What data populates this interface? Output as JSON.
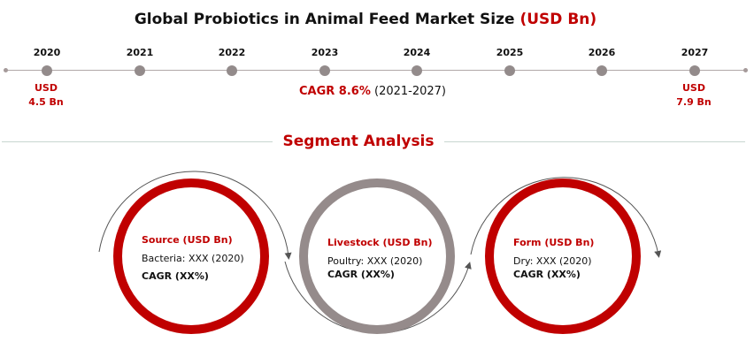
{
  "title": {
    "main": "Global Probiotics in Animal Feed Market Size",
    "unit": "(USD Bn)"
  },
  "timeline": {
    "years": [
      "2020",
      "2021",
      "2022",
      "2023",
      "2024",
      "2025",
      "2026",
      "2027"
    ],
    "start_value": {
      "line1": "USD",
      "line2": "4.5 Bn"
    },
    "end_value": {
      "line1": "USD",
      "line2": "7.9 Bn"
    },
    "cagr_label": "CAGR 8.6%",
    "cagr_period": "(2021-2027)"
  },
  "segment": {
    "title": "Segment Analysis",
    "items": [
      {
        "heading": "Source (USD Bn)",
        "detail": "Bacteria: XXX (2020)",
        "cagr": "CAGR (XX%)"
      },
      {
        "heading": "Livestock (USD Bn)",
        "detail": "Poultry: XXX (2020)",
        "cagr": "CAGR (XX%)"
      },
      {
        "heading": "Form (USD Bn)",
        "detail": "Dry: XXX (2020)",
        "cagr": "CAGR (XX%)"
      }
    ]
  },
  "colors": {
    "accent": "#c00000",
    "grey": "#958b8b",
    "tick": "#938b8b"
  }
}
